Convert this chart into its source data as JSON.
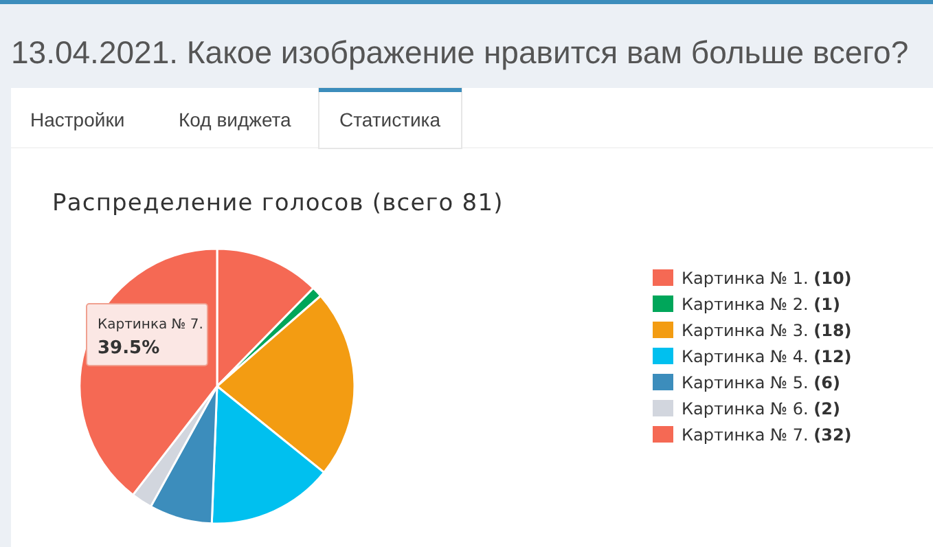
{
  "chart_data": {
    "type": "pie",
    "title": "Распределение голосов (всего 81)",
    "subtitle": "13.04.2021. Какое изображение нравится вам больше всего?",
    "categories": [
      "Картинка № 1.",
      "Картинка № 2.",
      "Картинка № 3.",
      "Картинка № 4.",
      "Картинка № 5.",
      "Картинка № 6.",
      "Картинка № 7."
    ],
    "values": [
      10,
      1,
      18,
      12,
      6,
      2,
      32
    ],
    "value_labels": [
      "(10)",
      "(1)",
      "(18)",
      "(12)",
      "(6)",
      "(2)",
      "(32)"
    ],
    "colors": [
      "#f56954",
      "#00a65a",
      "#f39c12",
      "#00c0ef",
      "#3c8dbc",
      "#d2d6de",
      "#f56954"
    ],
    "legend": "right",
    "annotations": [
      "Настройки",
      "Код виджета",
      "Статистика",
      "Картинка № 7.",
      "39.5%"
    ]
  }
}
